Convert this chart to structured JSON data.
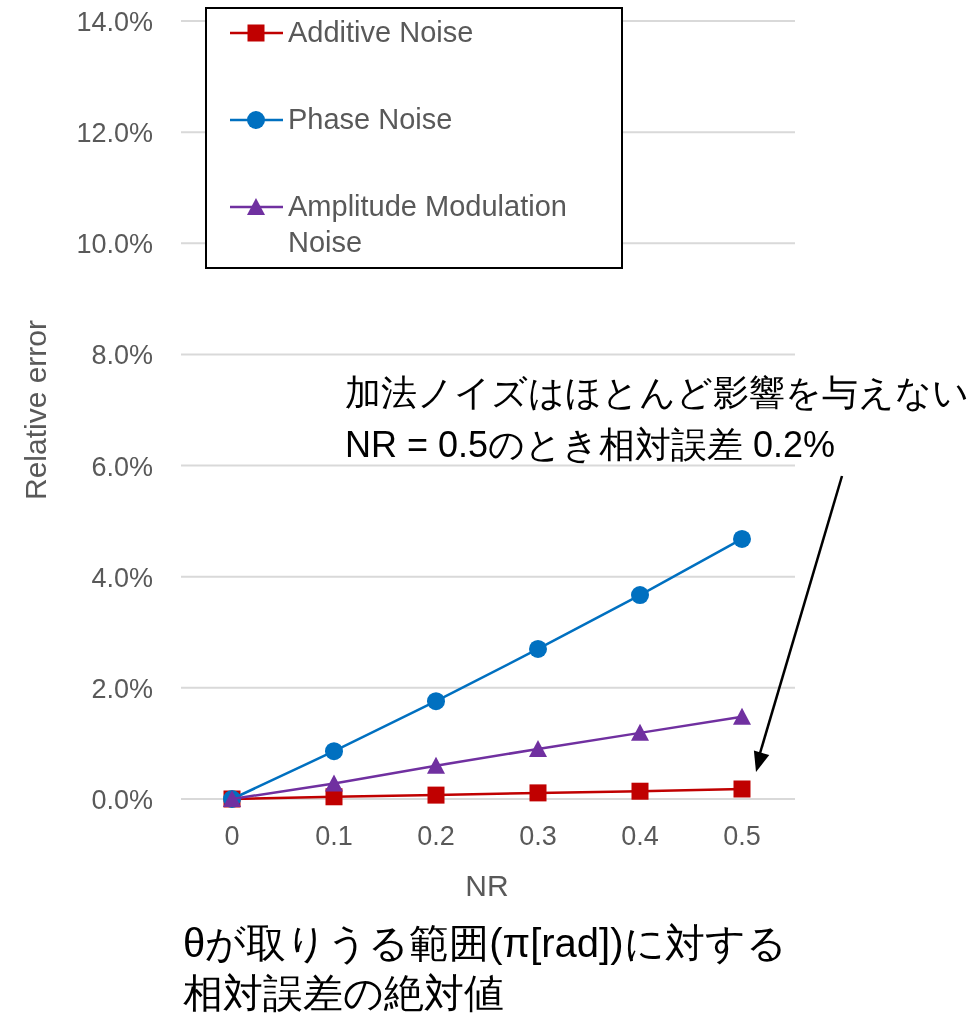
{
  "chart_data": {
    "type": "line",
    "xlabel": "NR",
    "ylabel": "Relative error",
    "categories": [
      "0",
      "0.1",
      "0.2",
      "0.3",
      "0.4",
      "0.5"
    ],
    "series": [
      {
        "name": "Additive Noise",
        "color": "#c00000",
        "marker": "square",
        "values": [
          0,
          0.04,
          0.07,
          0.11,
          0.14,
          0.18
        ]
      },
      {
        "name": "Phase Noise",
        "color": "#0070c0",
        "marker": "circle",
        "values": [
          0,
          0.86,
          1.76,
          2.7,
          3.67,
          4.68
        ]
      },
      {
        "name": "Amplitude Modulation Noise",
        "color": "#7030a0",
        "marker": "triangle",
        "values": [
          0,
          0.28,
          0.6,
          0.9,
          1.19,
          1.48
        ]
      }
    ],
    "ylim": [
      0,
      14
    ],
    "yticks": [
      {
        "value": 0,
        "label": "0.0%"
      },
      {
        "value": 2,
        "label": "2.0%"
      },
      {
        "value": 4,
        "label": "4.0%"
      },
      {
        "value": 6,
        "label": "6.0%"
      },
      {
        "value": 8,
        "label": "8.0%"
      },
      {
        "value": 10,
        "label": "10.0%"
      },
      {
        "value": 12,
        "label": "12.0%"
      },
      {
        "value": 14,
        "label": "14.0%"
      }
    ],
    "grid": "y",
    "legend": "top left",
    "annotations": [
      "加法ノイズはほとんど影響を与えないNR = 0.5のとき相対誤差 0.2%",
      "θが取りうる範囲(π[rad])に対する相対誤差の絶対値"
    ]
  }
}
